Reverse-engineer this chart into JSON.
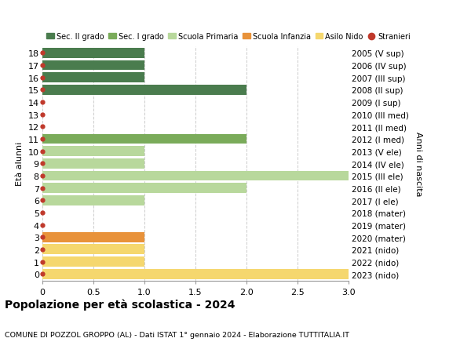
{
  "ages": [
    18,
    17,
    16,
    15,
    14,
    13,
    12,
    11,
    10,
    9,
    8,
    7,
    6,
    5,
    4,
    3,
    2,
    1,
    0
  ],
  "year_labels": [
    "2005 (V sup)",
    "2006 (IV sup)",
    "2007 (III sup)",
    "2008 (II sup)",
    "2009 (I sup)",
    "2010 (III med)",
    "2011 (II med)",
    "2012 (I med)",
    "2013 (V ele)",
    "2014 (IV ele)",
    "2015 (III ele)",
    "2016 (II ele)",
    "2017 (I ele)",
    "2018 (mater)",
    "2019 (mater)",
    "2020 (mater)",
    "2021 (nido)",
    "2022 (nido)",
    "2023 (nido)"
  ],
  "bar_values": [
    1,
    1,
    1,
    2,
    0,
    0,
    0,
    2,
    1,
    1,
    3,
    2,
    1,
    0,
    0,
    1,
    1,
    1,
    3
  ],
  "bar_colors": [
    "#4a7c4e",
    "#4a7c4e",
    "#4a7c4e",
    "#4a7c4e",
    "#4a7c4e",
    "#7aab5a",
    "#7aab5a",
    "#7aab5a",
    "#b8d89c",
    "#b8d89c",
    "#b8d89c",
    "#b8d89c",
    "#b8d89c",
    "#e8923a",
    "#e8923a",
    "#e8923a",
    "#f5d76e",
    "#f5d76e",
    "#f5d76e"
  ],
  "dot_color": "#c0392b",
  "legend_items": [
    {
      "label": "Sec. II grado",
      "color": "#4a7c4e",
      "type": "patch"
    },
    {
      "label": "Sec. I grado",
      "color": "#7aab5a",
      "type": "patch"
    },
    {
      "label": "Scuola Primaria",
      "color": "#b8d89c",
      "type": "patch"
    },
    {
      "label": "Scuola Infanzia",
      "color": "#e8923a",
      "type": "patch"
    },
    {
      "label": "Asilo Nido",
      "color": "#f5d76e",
      "type": "patch"
    },
    {
      "label": "Stranieri",
      "color": "#c0392b",
      "type": "dot"
    }
  ],
  "ylabel_left": "Età alunni",
  "ylabel_right": "Anni di nascita",
  "xlim": [
    0,
    3.0
  ],
  "xticks": [
    0,
    0.5,
    1.0,
    1.5,
    2.0,
    2.5,
    3.0
  ],
  "xtick_labels": [
    "0",
    "0.5",
    "1.0",
    "1.5",
    "2.0",
    "2.5",
    "3.0"
  ],
  "title": "Popolazione per età scolastica - 2024",
  "subtitle": "COMUNE DI POZZOL GROPPO (AL) - Dati ISTAT 1° gennaio 2024 - Elaborazione TUTTITALIA.IT",
  "bg_color": "#ffffff",
  "grid_color": "#cccccc",
  "bar_height": 0.82
}
